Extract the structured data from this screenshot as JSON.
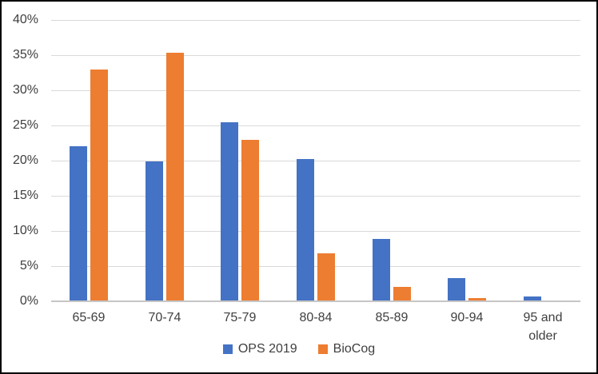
{
  "chart": {
    "background_color": "#ffffff",
    "frame_border_color": "#000000",
    "text_color": "#3f3f3f",
    "gridline_color": "#d9d9d9",
    "axis_line_color": "#c6c6c6"
  },
  "chart_data": {
    "type": "bar",
    "title": "",
    "xlabel": "",
    "ylabel": "",
    "categories": [
      "65-69",
      "70-74",
      "75-79",
      "80-84",
      "85-89",
      "90-94",
      "95 and older"
    ],
    "series": [
      {
        "name": "OPS 2019",
        "color": "#4472C4",
        "values": [
          22.0,
          19.9,
          25.4,
          20.2,
          8.9,
          3.3,
          0.7
        ]
      },
      {
        "name": "BioCog",
        "color": "#ED7D31",
        "values": [
          33.0,
          35.3,
          22.9,
          6.8,
          2.0,
          0.4,
          0.0
        ]
      }
    ],
    "ylim": [
      0,
      40
    ],
    "ytick_step": 5,
    "ytick_labels": [
      "0%",
      "5%",
      "10%",
      "15%",
      "20%",
      "25%",
      "30%",
      "35%",
      "40%"
    ],
    "ytick_format": "percent",
    "grid": true,
    "legend_position": "bottom"
  }
}
